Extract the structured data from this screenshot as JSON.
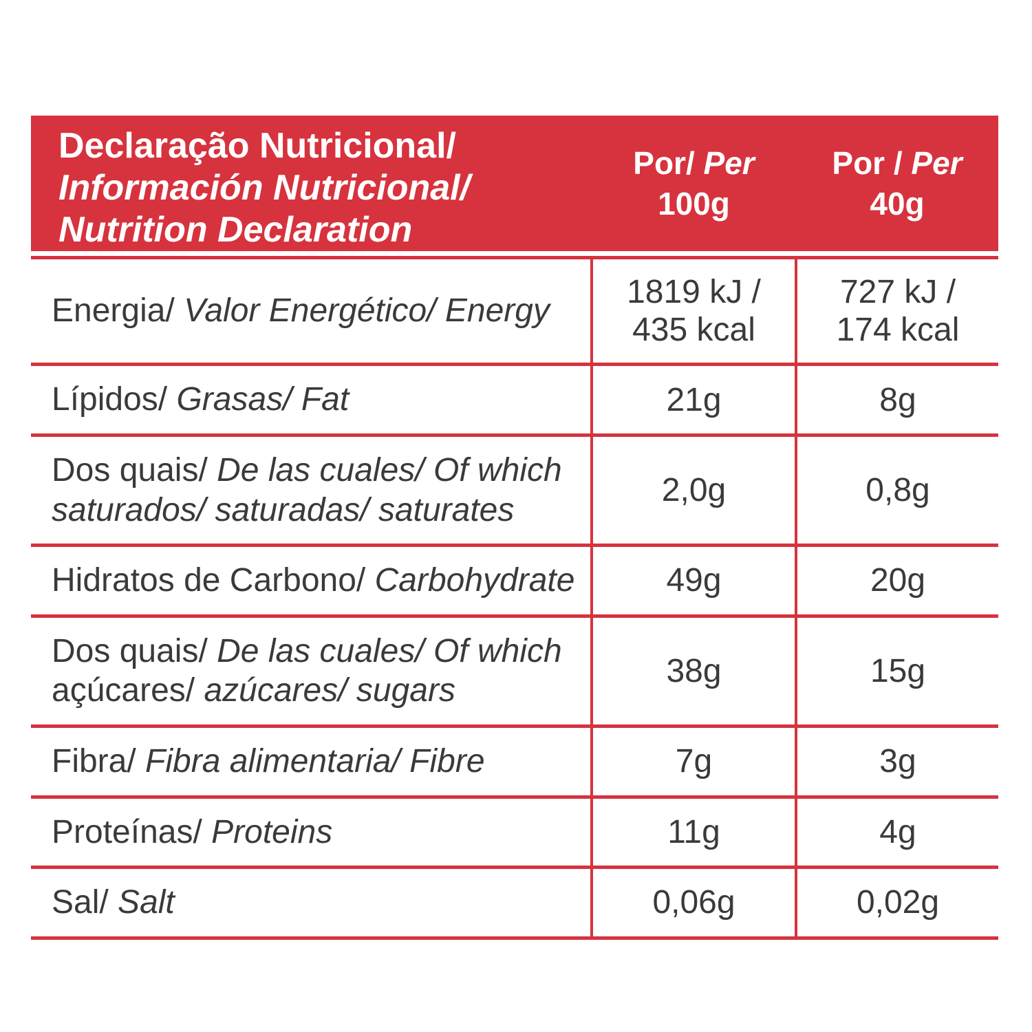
{
  "colors": {
    "accent_red": "#d6333e",
    "body_text": "#3a3a3a",
    "header_text": "#ffffff",
    "background": "#ffffff"
  },
  "header": {
    "title_lines": [
      {
        "text": "Declaração Nutricional/",
        "italic": false
      },
      {
        "text": "Información Nutricional/",
        "italic": true
      },
      {
        "text": "Nutrition Declaration",
        "italic": true
      }
    ],
    "columns": [
      {
        "prefix": "Por/",
        "per": "Per",
        "amount": "100g"
      },
      {
        "prefix": "Por /",
        "per": "Per",
        "amount": "40g"
      }
    ]
  },
  "rows": [
    {
      "name": "energy",
      "label_segments": [
        {
          "text": "Energia/ ",
          "italic": false
        },
        {
          "text": "Valor Energético/ Energy",
          "italic": true
        }
      ],
      "per_100g_lines": [
        "1819 kJ /",
        "435 kcal"
      ],
      "per_40g_lines": [
        "727 kJ /",
        "174 kcal"
      ]
    },
    {
      "name": "fat",
      "label_segments": [
        {
          "text": "Lípidos/ ",
          "italic": false
        },
        {
          "text": "Grasas/ Fat",
          "italic": true
        }
      ],
      "per_100g_lines": [
        "21g"
      ],
      "per_40g_lines": [
        "8g"
      ]
    },
    {
      "name": "saturates",
      "label_segments": [
        {
          "text": "Dos quais/ ",
          "italic": false
        },
        {
          "text": "De las cuales/ Of which",
          "italic": true,
          "br": true
        },
        {
          "text": "saturados/ saturadas/ saturates",
          "italic": true
        }
      ],
      "per_100g_lines": [
        "2,0g"
      ],
      "per_40g_lines": [
        "0,8g"
      ]
    },
    {
      "name": "carbohydrate",
      "label_segments": [
        {
          "text": "Hidratos de Carbono/ ",
          "italic": false
        },
        {
          "text": "Carbohydrate",
          "italic": true
        }
      ],
      "per_100g_lines": [
        "49g"
      ],
      "per_40g_lines": [
        "20g"
      ]
    },
    {
      "name": "sugars",
      "label_segments": [
        {
          "text": "Dos quais/ ",
          "italic": false
        },
        {
          "text": "De las cuales/ Of which",
          "italic": true,
          "br": true
        },
        {
          "text": "açúcares/ ",
          "italic": false
        },
        {
          "text": "azúcares/ sugars",
          "italic": true
        }
      ],
      "per_100g_lines": [
        "38g"
      ],
      "per_40g_lines": [
        "15g"
      ]
    },
    {
      "name": "fibre",
      "label_segments": [
        {
          "text": "Fibra/ ",
          "italic": false
        },
        {
          "text": "Fibra alimentaria/ Fibre",
          "italic": true
        }
      ],
      "per_100g_lines": [
        "7g"
      ],
      "per_40g_lines": [
        "3g"
      ]
    },
    {
      "name": "proteins",
      "label_segments": [
        {
          "text": "Proteínas/ ",
          "italic": false
        },
        {
          "text": "Proteins",
          "italic": true
        }
      ],
      "per_100g_lines": [
        "11g"
      ],
      "per_40g_lines": [
        "4g"
      ]
    },
    {
      "name": "salt",
      "label_segments": [
        {
          "text": "Sal/ ",
          "italic": false
        },
        {
          "text": "Salt",
          "italic": true
        }
      ],
      "per_100g_lines": [
        "0,06g"
      ],
      "per_40g_lines": [
        "0,02g"
      ]
    }
  ]
}
